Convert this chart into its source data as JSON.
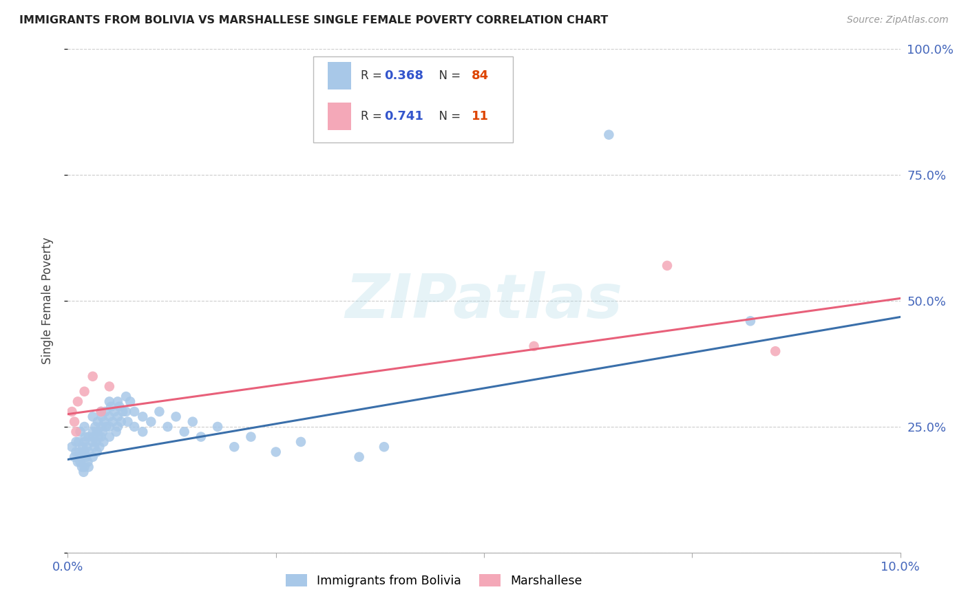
{
  "title": "IMMIGRANTS FROM BOLIVIA VS MARSHALLESE SINGLE FEMALE POVERTY CORRELATION CHART",
  "source": "Source: ZipAtlas.com",
  "ylabel": "Single Female Poverty",
  "xlim": [
    0.0,
    0.1
  ],
  "ylim": [
    0.0,
    1.0
  ],
  "blue_color": "#a8c8e8",
  "pink_color": "#f4a8b8",
  "blue_line_color": "#3a6faa",
  "pink_line_color": "#e8607a",
  "watermark_text": "ZIPatlas",
  "legend_r1": "0.368",
  "legend_n1": "84",
  "legend_r2": "0.741",
  "legend_n2": "11",
  "bolivia_x": [
    0.0005,
    0.0008,
    0.001,
    0.001,
    0.0012,
    0.0013,
    0.0014,
    0.0015,
    0.0015,
    0.0016,
    0.0017,
    0.0018,
    0.0019,
    0.002,
    0.002,
    0.002,
    0.002,
    0.0021,
    0.0022,
    0.0023,
    0.0024,
    0.0025,
    0.0025,
    0.0025,
    0.003,
    0.003,
    0.003,
    0.003,
    0.0031,
    0.0032,
    0.0033,
    0.0034,
    0.0035,
    0.0035,
    0.0036,
    0.0037,
    0.0038,
    0.004,
    0.004,
    0.004,
    0.0041,
    0.0042,
    0.0043,
    0.0044,
    0.0045,
    0.0046,
    0.005,
    0.005,
    0.005,
    0.005,
    0.0052,
    0.0054,
    0.0056,
    0.0058,
    0.006,
    0.006,
    0.006,
    0.0062,
    0.0064,
    0.0066,
    0.007,
    0.007,
    0.0072,
    0.0075,
    0.008,
    0.008,
    0.009,
    0.009,
    0.01,
    0.011,
    0.012,
    0.013,
    0.014,
    0.015,
    0.016,
    0.018,
    0.02,
    0.022,
    0.025,
    0.028,
    0.035,
    0.038,
    0.065,
    0.082
  ],
  "bolivia_y": [
    0.21,
    0.19,
    0.22,
    0.2,
    0.18,
    0.22,
    0.2,
    0.24,
    0.18,
    0.19,
    0.17,
    0.21,
    0.16,
    0.25,
    0.22,
    0.2,
    0.17,
    0.23,
    0.19,
    0.21,
    0.18,
    0.23,
    0.2,
    0.17,
    0.27,
    0.24,
    0.22,
    0.19,
    0.23,
    0.21,
    0.25,
    0.22,
    0.2,
    0.24,
    0.26,
    0.23,
    0.21,
    0.28,
    0.25,
    0.23,
    0.27,
    0.24,
    0.22,
    0.26,
    0.28,
    0.25,
    0.3,
    0.27,
    0.25,
    0.23,
    0.29,
    0.26,
    0.28,
    0.24,
    0.3,
    0.27,
    0.25,
    0.29,
    0.26,
    0.28,
    0.31,
    0.28,
    0.26,
    0.3,
    0.28,
    0.25,
    0.27,
    0.24,
    0.26,
    0.28,
    0.25,
    0.27,
    0.24,
    0.26,
    0.23,
    0.25,
    0.21,
    0.23,
    0.2,
    0.22,
    0.19,
    0.21,
    0.83,
    0.46
  ],
  "marshallese_x": [
    0.0005,
    0.0008,
    0.001,
    0.0012,
    0.002,
    0.003,
    0.004,
    0.005,
    0.056,
    0.072,
    0.085
  ],
  "marshallese_y": [
    0.28,
    0.26,
    0.24,
    0.3,
    0.32,
    0.35,
    0.28,
    0.33,
    0.41,
    0.57,
    0.4
  ]
}
